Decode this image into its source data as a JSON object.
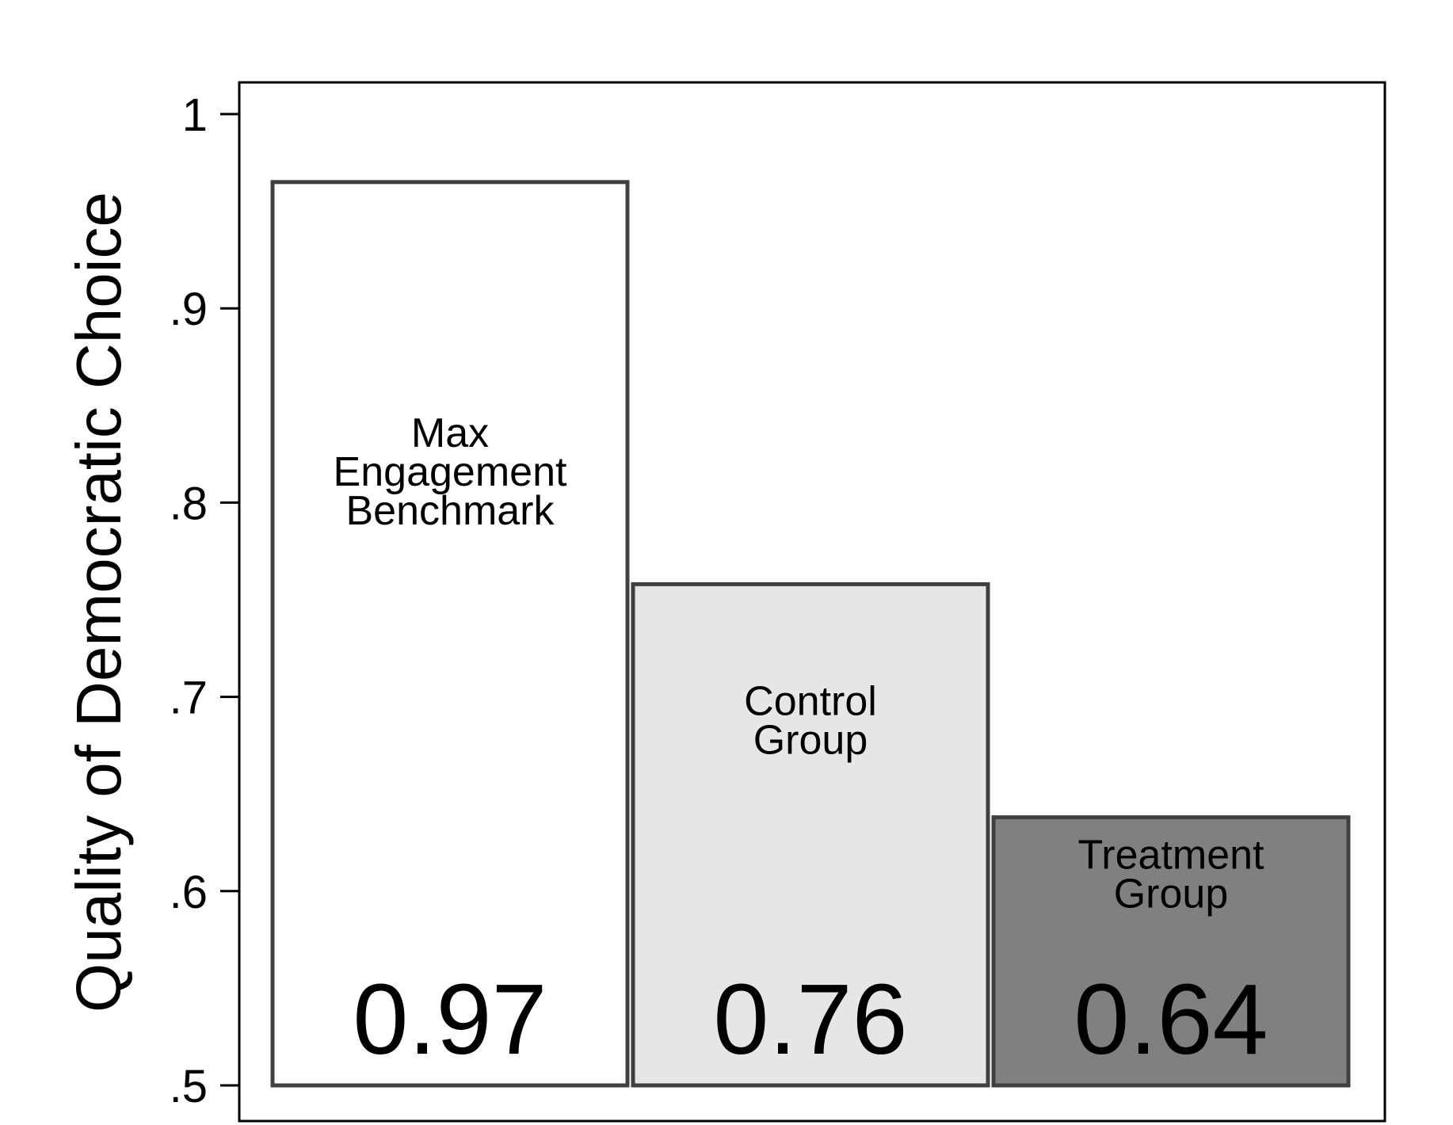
{
  "chart_data": {
    "type": "bar",
    "title": "",
    "xlabel": "",
    "ylabel": "Quality of Democratic Choice",
    "ylim": [
      0.5,
      1.0
    ],
    "yticks": [
      {
        "value": 0.5,
        "label": ".5"
      },
      {
        "value": 0.6,
        "label": ".6"
      },
      {
        "value": 0.7,
        "label": ".7"
      },
      {
        "value": 0.8,
        "label": ".8"
      },
      {
        "value": 0.9,
        "label": ".9"
      },
      {
        "value": 1.0,
        "label": "1"
      }
    ],
    "grid": false,
    "legend": "none",
    "bars": [
      {
        "label_lines": [
          "Max",
          "Engagement",
          "Benchmark"
        ],
        "value": 0.965,
        "value_label": "0.97",
        "fill": "#ffffff"
      },
      {
        "label_lines": [
          "Control",
          "Group"
        ],
        "value": 0.758,
        "value_label": "0.76",
        "fill": "#e6e6e6"
      },
      {
        "label_lines": [
          "Treatment",
          "Group"
        ],
        "value": 0.638,
        "value_label": "0.64",
        "fill": "#808080"
      }
    ],
    "colors": {
      "bar_edge": "#404040",
      "frame": "#000000"
    }
  }
}
